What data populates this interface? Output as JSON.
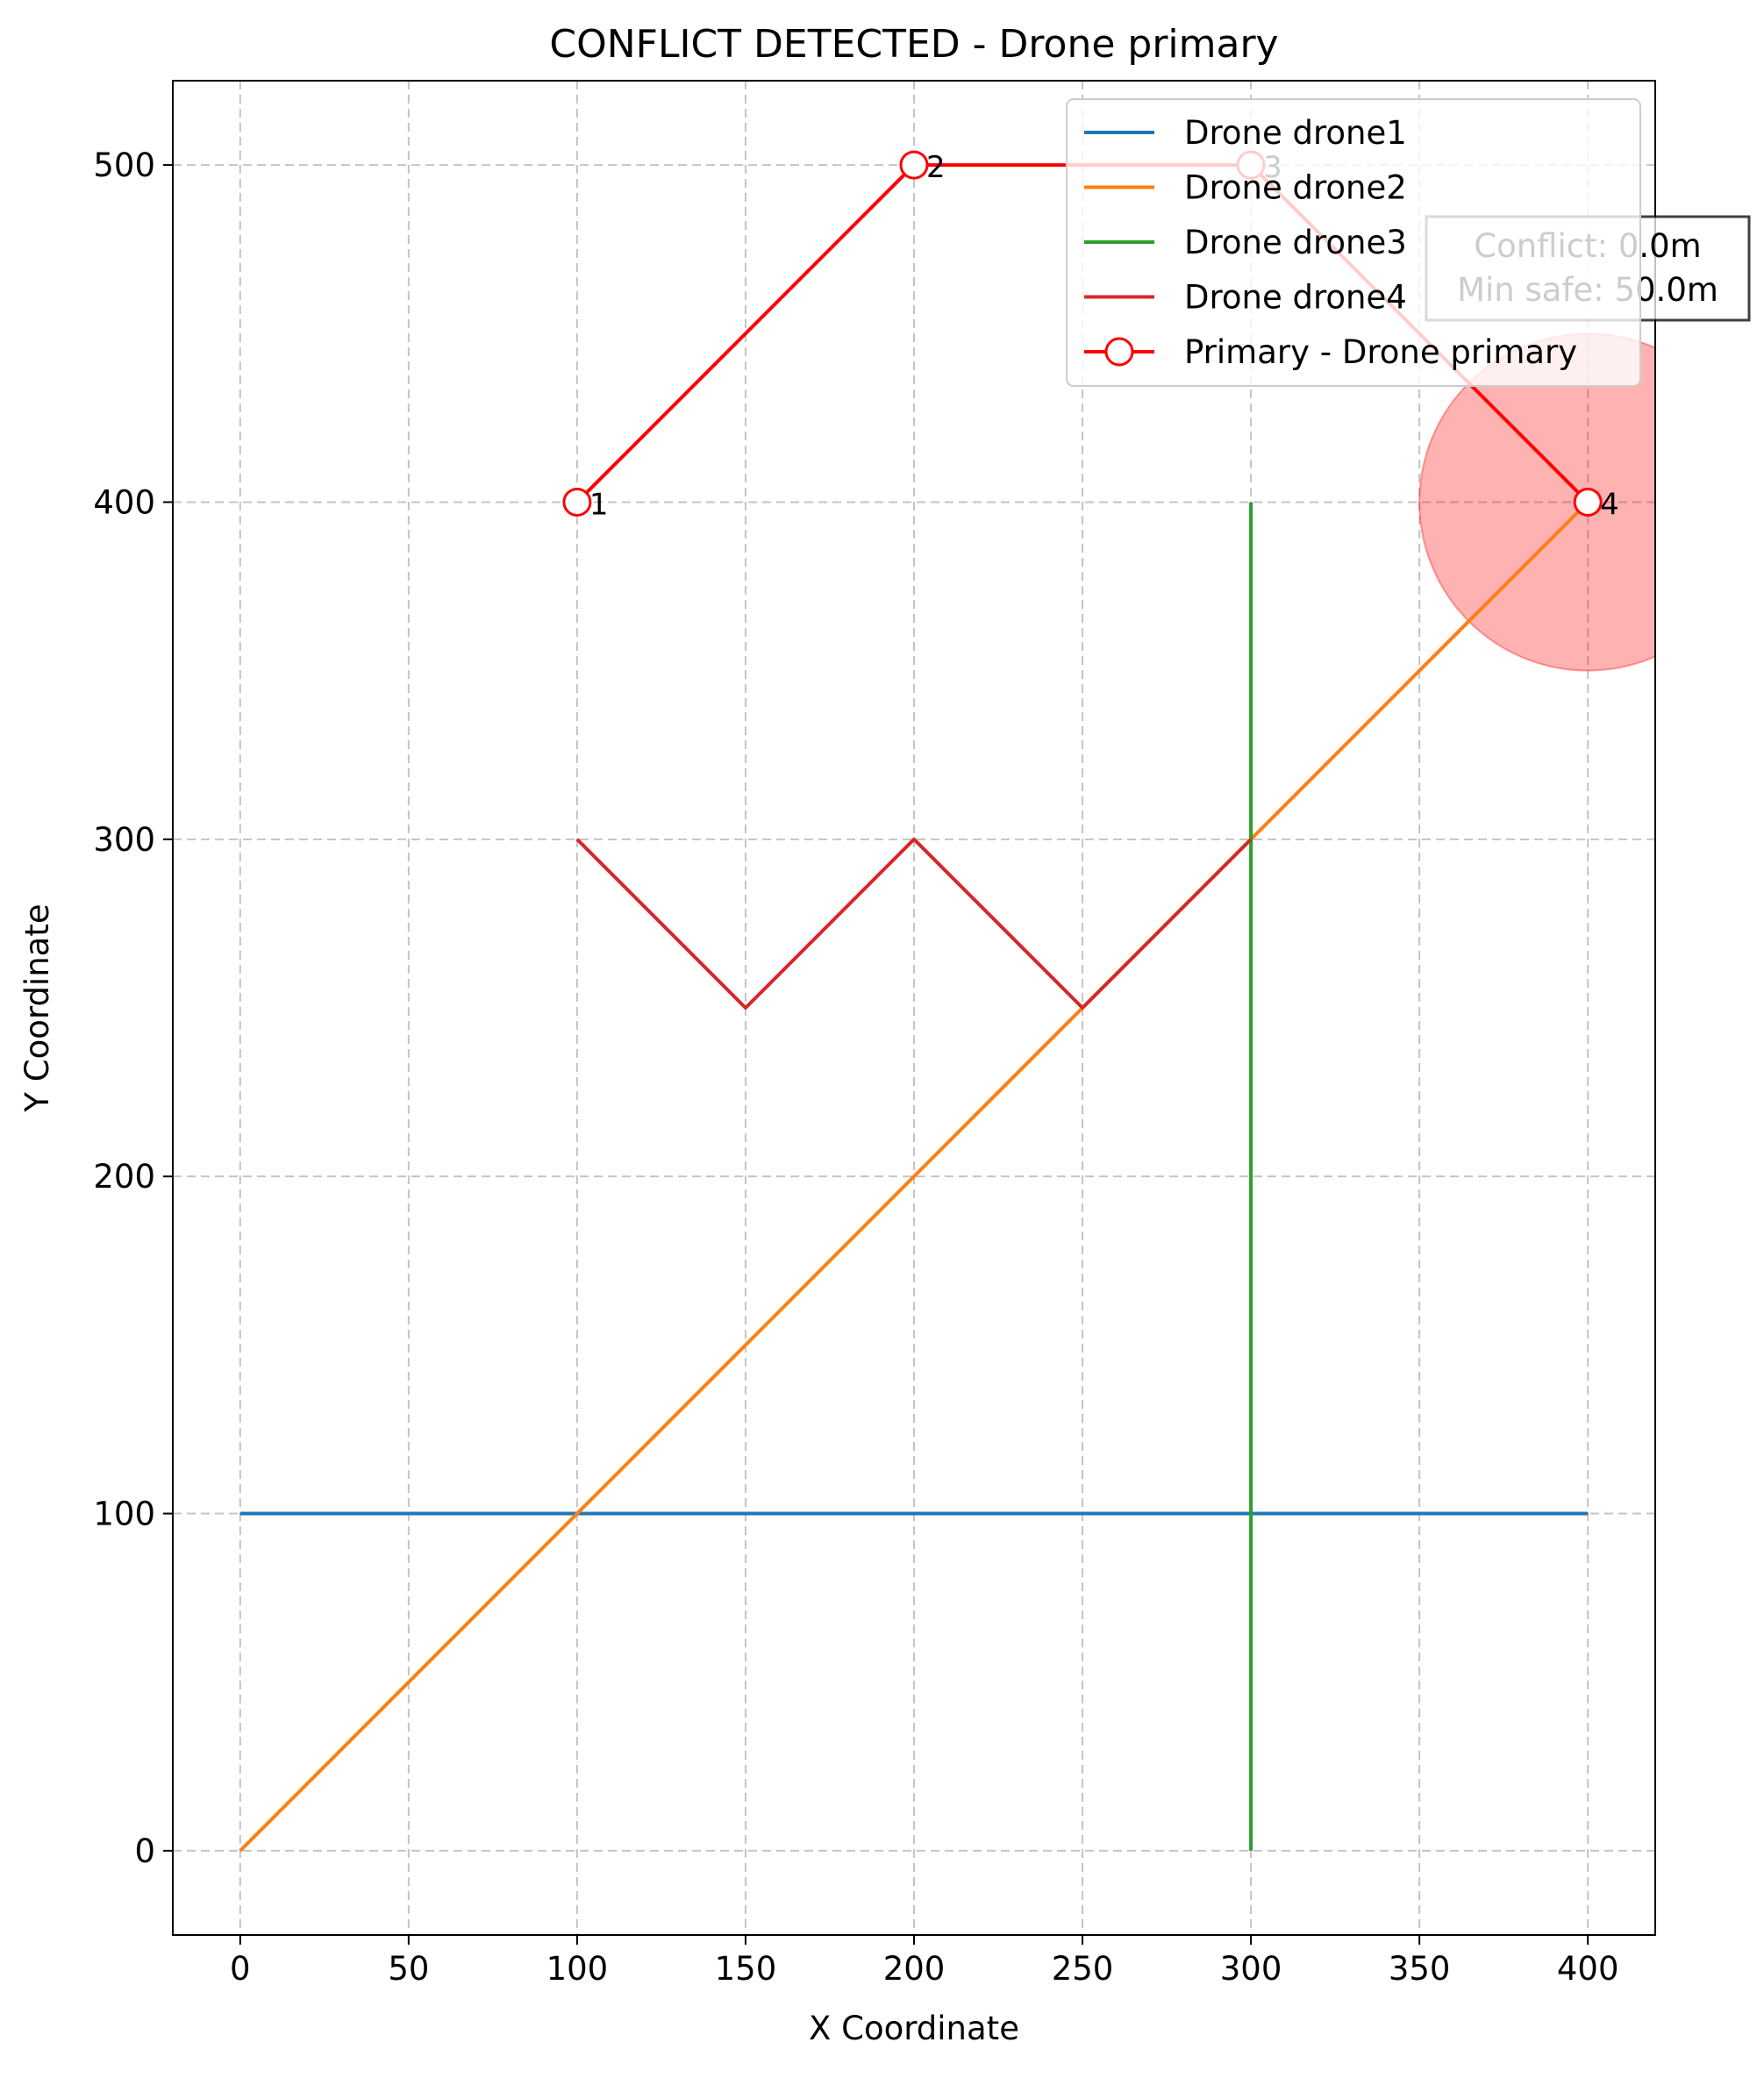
{
  "chart_data": {
    "type": "line",
    "title": "CONFLICT DETECTED - Drone primary",
    "xlabel": "X Coordinate",
    "ylabel": "Y Coordinate",
    "xlim": [
      -20,
      420
    ],
    "ylim": [
      -25,
      525
    ],
    "xticks": [
      0,
      50,
      100,
      150,
      200,
      250,
      300,
      350,
      400
    ],
    "yticks": [
      0,
      100,
      200,
      300,
      400,
      500
    ],
    "grid": true,
    "legend_position": "top-right",
    "series": [
      {
        "name": "Drone drone1",
        "color": "#1f77b4",
        "points": [
          [
            0,
            100
          ],
          [
            400,
            100
          ]
        ]
      },
      {
        "name": "Drone drone2",
        "color": "#ff7f0e",
        "points": [
          [
            0,
            0
          ],
          [
            400,
            400
          ]
        ]
      },
      {
        "name": "Drone drone3",
        "color": "#2ca02c",
        "points": [
          [
            300,
            0
          ],
          [
            300,
            400
          ]
        ]
      },
      {
        "name": "Drone drone4",
        "color": "#d62728",
        "points": [
          [
            100,
            300
          ],
          [
            150,
            250
          ],
          [
            200,
            300
          ],
          [
            250,
            250
          ],
          [
            300,
            300
          ]
        ]
      }
    ],
    "primary": {
      "name": "Primary - Drone primary",
      "color": "#ff0000",
      "points": [
        [
          100,
          400
        ],
        [
          200,
          500
        ],
        [
          300,
          500
        ],
        [
          400,
          400
        ]
      ],
      "waypoint_labels": [
        "1",
        "2",
        "3",
        "4"
      ]
    },
    "conflict": {
      "center": [
        400,
        400
      ],
      "radius": 50,
      "color": "#ff0000",
      "lines": [
        "Conflict: 0.0m",
        "Min safe: 50.0m"
      ]
    }
  }
}
